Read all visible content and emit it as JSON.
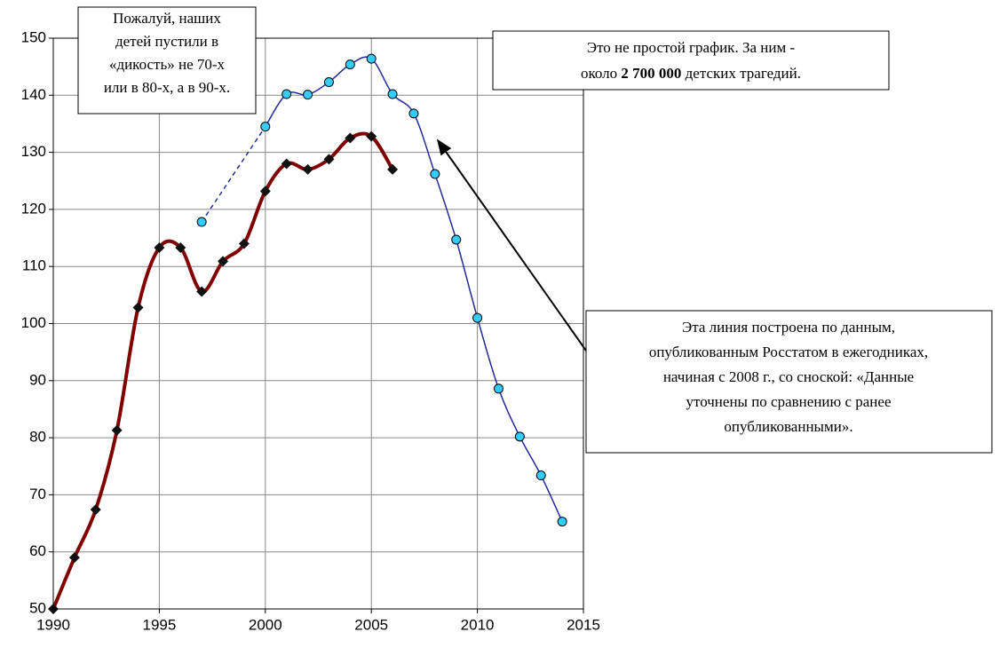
{
  "chart_data": {
    "type": "line",
    "xlim": [
      1990,
      2015
    ],
    "xticks": [
      1990,
      1995,
      2000,
      2005,
      2010,
      2015
    ],
    "ylim": [
      50,
      150
    ],
    "yticks": [
      50,
      60,
      70,
      80,
      90,
      100,
      110,
      120,
      130,
      140,
      150
    ],
    "grid": true,
    "series": [
      {
        "color": "#800000",
        "marker": "diamond",
        "x": [
          1990,
          1991,
          1992,
          1993,
          1994,
          1995,
          1996,
          1997,
          1998,
          1999,
          2000,
          2001,
          2002,
          2003,
          2004,
          2005,
          2006
        ],
        "values": [
          50,
          59,
          67.4,
          81.3,
          102.8,
          113.3,
          113.3,
          105.6,
          110.9,
          114,
          123.2,
          128,
          127,
          128.8,
          132.5,
          132.8,
          127
        ]
      },
      {
        "color": "#1f2a9c",
        "marker": "circle",
        "marker_color": "#33ccff",
        "x": [
          1997,
          2000,
          2001,
          2002,
          2003,
          2004,
          2005,
          2006,
          2007,
          2008,
          2009,
          2010,
          2011,
          2012,
          2013,
          2014
        ],
        "values": [
          117.8,
          134.5,
          140.2,
          140.1,
          142.3,
          145.4,
          146.4,
          140.2,
          136.8,
          126.2,
          114.7,
          101,
          88.6,
          80.2,
          73.4,
          65.3
        ]
      }
    ],
    "annotations": [
      {
        "lines": [
          "Пожалуй, наших",
          "детей пустили в",
          "«дикость» не 70-х",
          "или в 80-х, а в 90-х."
        ]
      },
      {
        "line1": "Это не простой график.   За ним -",
        "line2_before": "около ",
        "line2_bold": "2 700 000",
        "line2_after": " детских трагедий."
      },
      {
        "lines": [
          "Эта линия построена по данным,",
          "опубликованным Росстатом в ежегодниках,",
          "начиная с 2008 г., со сноской: «Данные",
          "уточнены по сравнению с ранее",
          "опубликованными»."
        ]
      }
    ]
  }
}
